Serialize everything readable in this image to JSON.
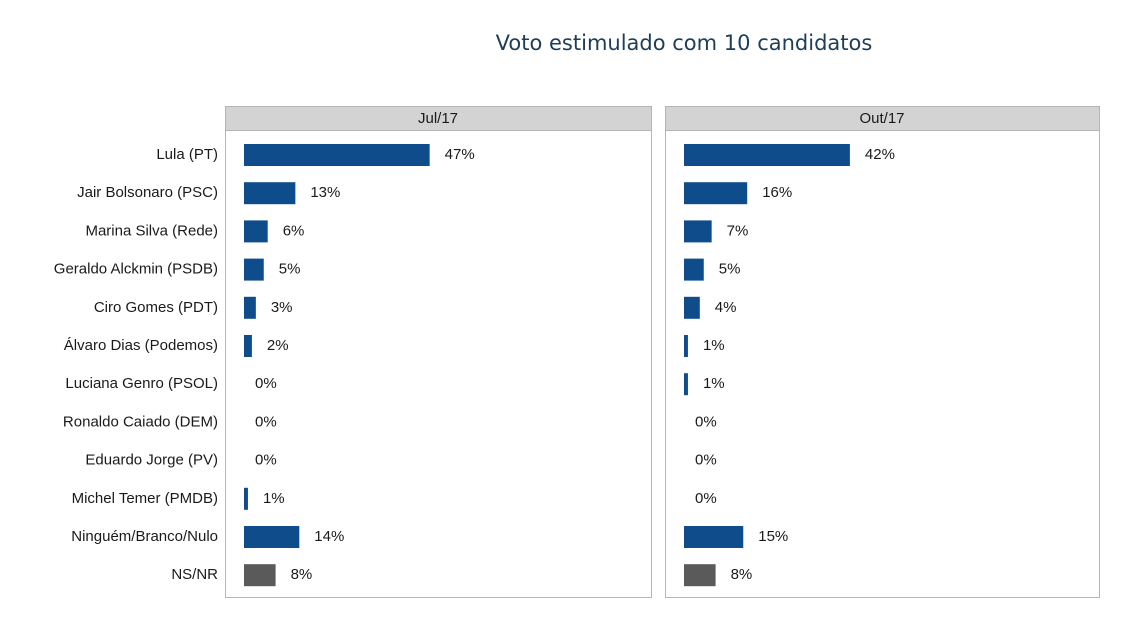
{
  "title": "Voto estimulado com 10 candidatos",
  "chart_data": {
    "type": "bar",
    "orientation": "horizontal",
    "facets": true,
    "categories": [
      "Lula (PT)",
      "Jair Bolsonaro (PSC)",
      "Marina Silva (Rede)",
      "Geraldo Alckmin (PSDB)",
      "Ciro Gomes (PDT)",
      "Álvaro Dias (Podemos)",
      "Luciana Genro (PSOL)",
      "Ronaldo Caiado (DEM)",
      "Eduardo Jorge (PV)",
      "Michel Temer (PMDB)",
      "Ninguém/Branco/Nulo",
      "NS/NR"
    ],
    "colors": [
      "#0f4c8c",
      "#0f4c8c",
      "#0f4c8c",
      "#0f4c8c",
      "#0f4c8c",
      "#0f4c8c",
      "#0f4c8c",
      "#0f4c8c",
      "#0f4c8c",
      "#0f4c8c",
      "#0f4c8c",
      "#5a5a5a"
    ],
    "series": [
      {
        "name": "Jul/17",
        "values": [
          47,
          13,
          6,
          5,
          3,
          2,
          0,
          0,
          0,
          1,
          14,
          8
        ],
        "value_labels": [
          "47%",
          "13%",
          "6%",
          "5%",
          "3%",
          "2%",
          "0%",
          "0%",
          "0%",
          "1%",
          "14%",
          "8%"
        ]
      },
      {
        "name": "Out/17",
        "values": [
          42,
          16,
          7,
          5,
          4,
          1,
          1,
          0,
          0,
          0,
          15,
          8
        ],
        "value_labels": [
          "42%",
          "16%",
          "7%",
          "5%",
          "4%",
          "1%",
          "1%",
          "0%",
          "0%",
          "0%",
          "15%",
          "8%"
        ]
      }
    ]
  }
}
